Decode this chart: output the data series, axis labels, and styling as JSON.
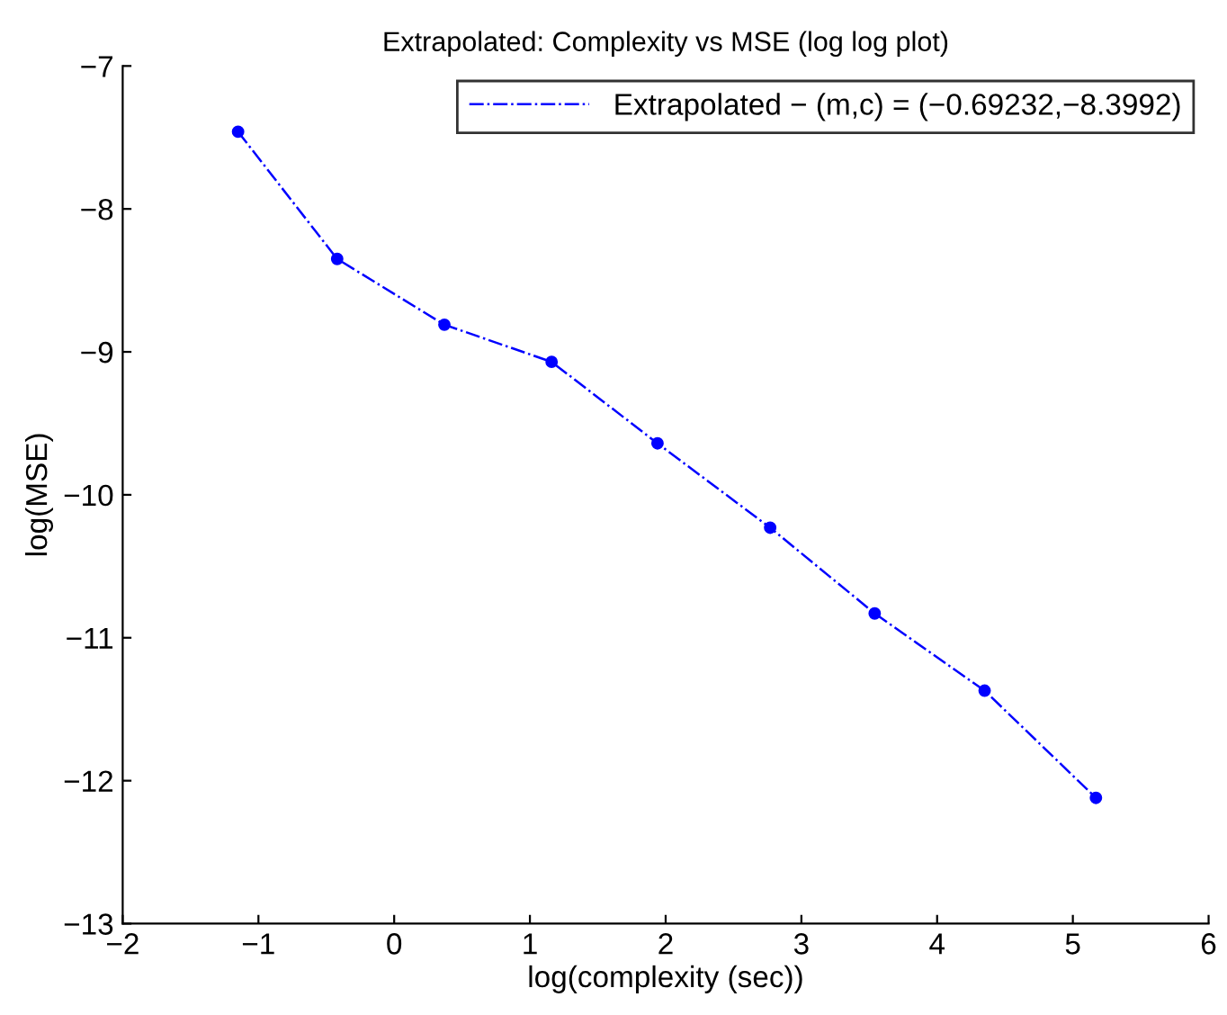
{
  "chart_data": {
    "type": "line",
    "title": "Extrapolated: Complexity vs MSE (log log plot)",
    "xlabel": "log(complexity (sec))",
    "ylabel": "log(MSE)",
    "x": [
      -1.15,
      -0.42,
      0.37,
      1.16,
      1.94,
      2.77,
      3.54,
      4.35,
      5.17
    ],
    "series": [
      {
        "name": "Extrapolated − (m,c) = (−0.69232,−8.3992)",
        "color": "#0000ff",
        "values": [
          -7.46,
          -8.35,
          -8.81,
          -9.07,
          -9.64,
          -10.23,
          -10.83,
          -11.37,
          -12.12
        ]
      }
    ],
    "xlim": [
      -2,
      6
    ],
    "xticks": [
      {
        "value": -2,
        "label": "−2"
      },
      {
        "value": -1,
        "label": "−1"
      },
      0,
      1,
      2,
      3,
      4,
      5,
      6
    ],
    "ylim": [
      -13,
      -7
    ],
    "yticks": [
      {
        "value": -13,
        "label": "−13"
      },
      {
        "value": -12,
        "label": "−12"
      },
      {
        "value": -11,
        "label": "−11"
      },
      {
        "value": -10,
        "label": "−10"
      },
      {
        "value": -9,
        "label": "−9"
      },
      {
        "value": -8,
        "label": "−8"
      },
      {
        "value": -7,
        "label": "−7"
      }
    ],
    "grid": false,
    "legend": "top right",
    "marker": "circle",
    "line_style": "dashdot"
  }
}
